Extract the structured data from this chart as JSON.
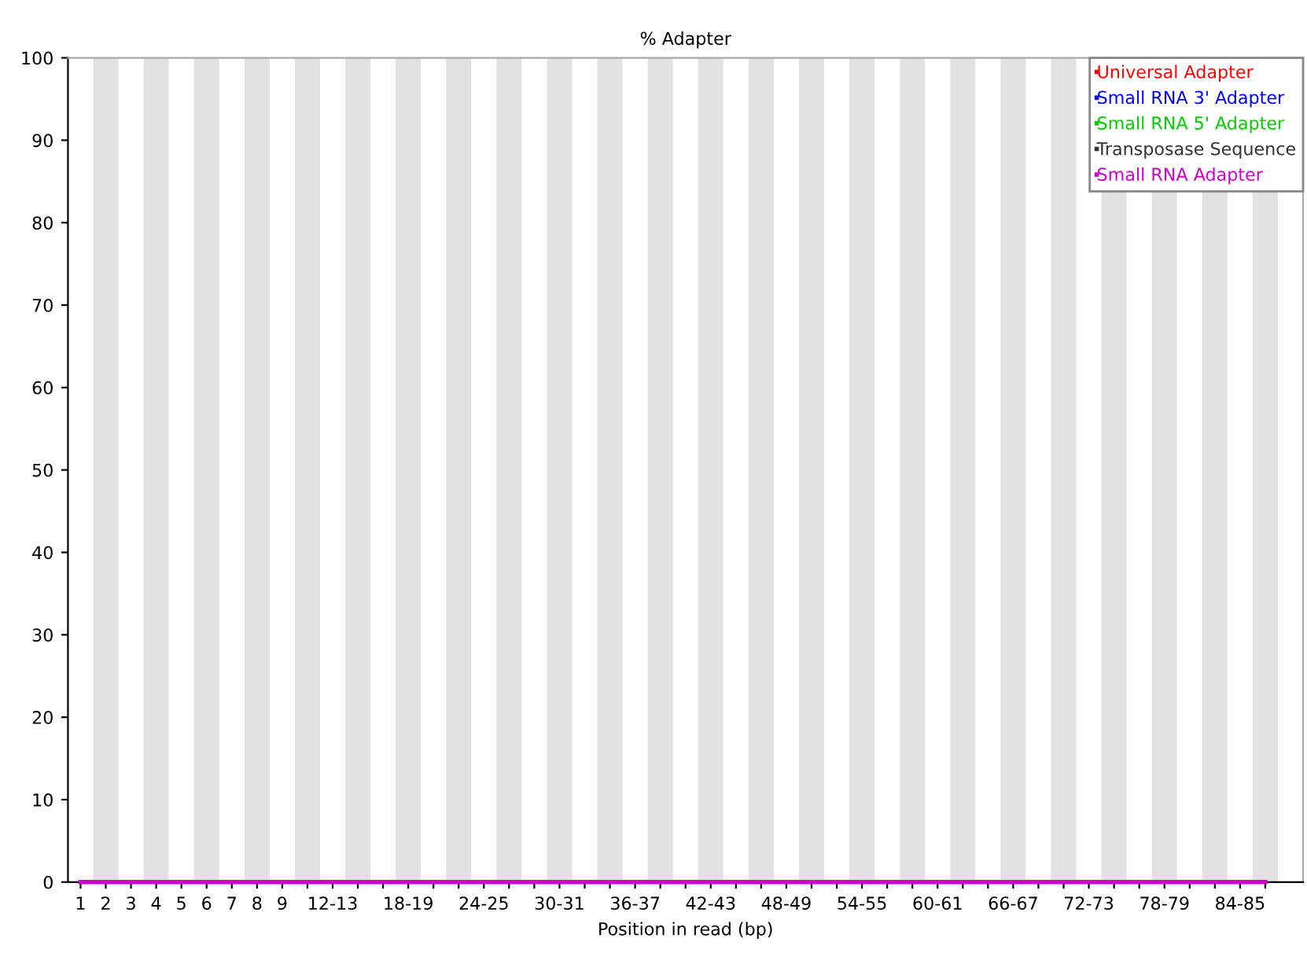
{
  "chart_data": {
    "type": "line",
    "title": "% Adapter",
    "xlabel": "Position in read (bp)",
    "categories": [
      "1",
      "2",
      "3",
      "4",
      "5",
      "6",
      "7",
      "8",
      "9",
      null,
      "12-13",
      null,
      null,
      "18-19",
      null,
      null,
      "24-25",
      null,
      null,
      "30-31",
      null,
      null,
      "36-37",
      null,
      null,
      "42-43",
      null,
      null,
      "48-49",
      null,
      null,
      "54-55",
      null,
      null,
      "60-61",
      null,
      null,
      "66-67",
      null,
      null,
      "72-73",
      null,
      null,
      "78-79",
      null,
      null,
      "84-85",
      null
    ],
    "series": [
      {
        "name": "Universal Adapter",
        "color": "#ff0000",
        "values": [
          null,
          null,
          null,
          null,
          null,
          null,
          null,
          null,
          null,
          null,
          null,
          null,
          null,
          null,
          null,
          null,
          null,
          null,
          null,
          null,
          null,
          null,
          null,
          null,
          null,
          null,
          null,
          null,
          null,
          null,
          null,
          null,
          null,
          null,
          null,
          null,
          null,
          null,
          null,
          null,
          null,
          null,
          null,
          null,
          null,
          null,
          null,
          null
        ]
      },
      {
        "name": "Small RNA 3' Adapter",
        "color": "#0000ff",
        "values": [
          null,
          null,
          null,
          null,
          null,
          null,
          null,
          null,
          null,
          null,
          null,
          null,
          null,
          null,
          null,
          null,
          null,
          null,
          null,
          null,
          null,
          null,
          null,
          null,
          null,
          null,
          null,
          null,
          null,
          null,
          null,
          null,
          null,
          null,
          null,
          null,
          null,
          null,
          null,
          null,
          null,
          null,
          null,
          null,
          null,
          null,
          null,
          null
        ]
      },
      {
        "name": "Small RNA 5' Adapter",
        "color": "#00cc00",
        "values": [
          null,
          null,
          null,
          null,
          null,
          null,
          null,
          null,
          null,
          null,
          null,
          null,
          null,
          null,
          null,
          null,
          null,
          null,
          null,
          null,
          null,
          null,
          null,
          null,
          null,
          null,
          null,
          null,
          null,
          null,
          null,
          null,
          null,
          null,
          null,
          null,
          null,
          null,
          null,
          null,
          null,
          null,
          null,
          null,
          null,
          null,
          null,
          null
        ]
      },
      {
        "name": "Transposase Sequence",
        "color": "#333333",
        "values": [
          null,
          null,
          null,
          null,
          null,
          null,
          null,
          null,
          null,
          null,
          null,
          null,
          null,
          null,
          null,
          null,
          null,
          null,
          null,
          null,
          null,
          null,
          null,
          null,
          null,
          null,
          null,
          null,
          null,
          null,
          null,
          null,
          null,
          null,
          null,
          null,
          null,
          null,
          null,
          null,
          null,
          null,
          null,
          null,
          null,
          null,
          null,
          null
        ]
      },
      {
        "name": "Small RNA Adapter",
        "color": "#cc00cc",
        "values": [
          0,
          0,
          0,
          0,
          0,
          0,
          0,
          0,
          0,
          0,
          0,
          0,
          0,
          0,
          0,
          0,
          0,
          0,
          0,
          0,
          0,
          0,
          0,
          0,
          0,
          0,
          0,
          0,
          0,
          0,
          0,
          0,
          0,
          0,
          0,
          0,
          0,
          0,
          0,
          0,
          0,
          0,
          0,
          0,
          0,
          0,
          0,
          0
        ]
      }
    ],
    "ylim": [
      0,
      100
    ],
    "yticks": [
      0,
      10,
      20,
      30,
      40,
      50,
      60,
      70,
      80,
      90,
      100
    ],
    "grid": false,
    "legend": "top right",
    "marker": "none",
    "line_style": "solid"
  }
}
